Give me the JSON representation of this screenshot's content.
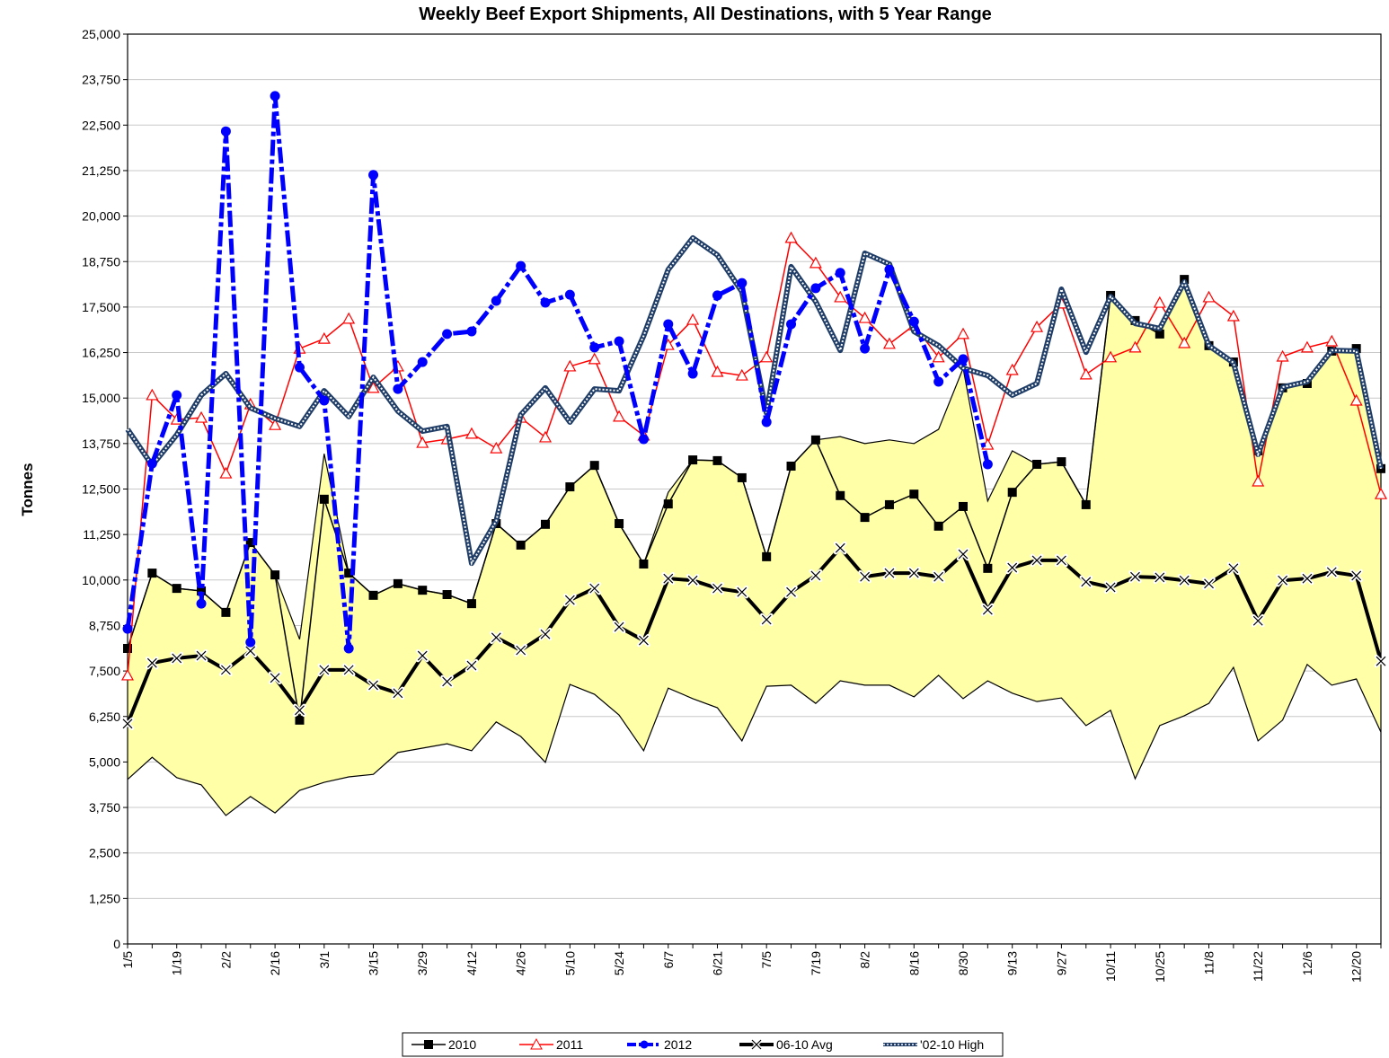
{
  "chart_data": {
    "type": "line",
    "title": "Weekly Beef Export Shipments, All Destinations, with 5 Year Range",
    "y_label": "Tonnes",
    "categories": [
      "1/5",
      null,
      "1/19",
      null,
      "2/2",
      null,
      "2/16",
      null,
      "3/1",
      null,
      "3/15",
      null,
      "3/29",
      null,
      "4/12",
      null,
      "4/26",
      null,
      "5/10",
      null,
      "5/24",
      null,
      "6/7",
      null,
      "6/21",
      null,
      "7/5",
      null,
      "7/19",
      null,
      "8/2",
      null,
      "8/16",
      null,
      "8/30",
      null,
      "9/13",
      null,
      "9/27",
      null,
      "10/11",
      null,
      "10/25",
      null,
      "11/8",
      null,
      "11/22",
      null,
      "12/6",
      null,
      "12/20",
      null
    ],
    "ylim": [
      0,
      25000
    ],
    "yticks": [
      0,
      {
        "value": 1250,
        "label": "1,250"
      },
      {
        "value": 2500,
        "label": "2,500"
      },
      {
        "value": 3750,
        "label": "3,750"
      },
      {
        "value": 5000,
        "label": "5,000"
      },
      {
        "value": 6250,
        "label": "6,250"
      },
      {
        "value": 7500,
        "label": "7,500"
      },
      {
        "value": 8750,
        "label": "8,750"
      },
      {
        "value": 10000,
        "label": "10,000"
      },
      {
        "value": 11250,
        "label": "11,250"
      },
      {
        "value": 12500,
        "label": "12,500"
      },
      {
        "value": 13750,
        "label": "13,750"
      },
      {
        "value": 15000,
        "label": "15,000"
      },
      {
        "value": 16250,
        "label": "16,250"
      },
      {
        "value": 17500,
        "label": "17,500"
      },
      {
        "value": 18750,
        "label": "18,750"
      },
      {
        "value": 20000,
        "label": "20,000"
      },
      {
        "value": 21250,
        "label": "21,250"
      },
      {
        "value": 22500,
        "label": "22,500"
      },
      {
        "value": 23750,
        "label": "23,750"
      },
      {
        "value": 25000,
        "label": "25,000"
      }
    ],
    "grid": true,
    "legend": "bottom",
    "range": {
      "color": "#ffffa8",
      "edge_color": "#000000",
      "high": [
        8120,
        10190,
        9770,
        9700,
        9110,
        11030,
        10140,
        8370,
        13470,
        10190,
        9580,
        9900,
        9720,
        9600,
        9350,
        11550,
        10960,
        11530,
        12560,
        13150,
        11550,
        10440,
        12410,
        13300,
        13280,
        12810,
        10640,
        13130,
        13850,
        13940,
        13750,
        13850,
        13750,
        14140,
        15820,
        12170,
        13550,
        13180,
        13250,
        12070,
        17820,
        17130,
        16760,
        18260,
        16440,
        15990,
        13550,
        15280,
        15400,
        16290,
        16360,
        13060
      ],
      "low": [
        4520,
        5130,
        4570,
        4370,
        3530,
        4050,
        3600,
        4220,
        4440,
        4590,
        4660,
        5260,
        5380,
        5500,
        5310,
        6100,
        5700,
        4990,
        7130,
        6860,
        6290,
        5310,
        7030,
        6740,
        6490,
        5580,
        7080,
        7110,
        6610,
        7230,
        7110,
        7110,
        6790,
        7380,
        6740,
        7230,
        6890,
        6660,
        6760,
        6000,
        6420,
        4540,
        6000,
        6270,
        6610,
        7600,
        5580,
        6150,
        7680,
        7110,
        7280,
        5820
      ]
    },
    "series": [
      {
        "name": "2010",
        "color": "#000000",
        "marker": "square",
        "width": 1.5,
        "values": [
          8120,
          10190,
          9770,
          9700,
          9110,
          11030,
          10140,
          6150,
          12220,
          10190,
          9580,
          9900,
          9720,
          9600,
          9350,
          11550,
          10960,
          11530,
          12560,
          13150,
          11550,
          10440,
          12090,
          13300,
          13280,
          12810,
          10640,
          13130,
          13850,
          12320,
          11720,
          12070,
          12360,
          11480,
          12020,
          10320,
          12410,
          13180,
          13250,
          12070,
          17820,
          17130,
          16760,
          18260,
          16440,
          15990,
          13550,
          15280,
          15400,
          16290,
          16360,
          13060
        ]
      },
      {
        "name": "2011",
        "color": "#ff0000",
        "marker": "triangle",
        "width": 1.5,
        "values": [
          7380,
          15080,
          14410,
          14460,
          12930,
          14830,
          14260,
          16360,
          16630,
          17180,
          15280,
          15870,
          13770,
          13870,
          14020,
          13620,
          14460,
          13920,
          15870,
          16070,
          14490,
          13970,
          16460,
          17150,
          15720,
          15620,
          16120,
          19400,
          18710,
          17770,
          17200,
          16490,
          17000,
          16120,
          16760,
          13720,
          15770,
          16950,
          17600,
          15650,
          16120,
          16390,
          17620,
          16510,
          17770,
          17250,
          12710,
          16140,
          16390,
          16560,
          14930,
          12360
        ]
      },
      {
        "name": "2012",
        "color": "#0000ff",
        "marker": "circle",
        "width": 5,
        "values": [
          8660,
          13200,
          15080,
          9350,
          22330,
          8290,
          23300,
          15840,
          14930,
          8120,
          21130,
          15250,
          15990,
          16760,
          16830,
          17670,
          18630,
          17620,
          17840,
          16390,
          16560,
          13870,
          17030,
          15670,
          17820,
          18160,
          14340,
          17030,
          18020,
          18440,
          16360,
          18530,
          17100,
          15450,
          16070,
          13180,
          null,
          null,
          null,
          null,
          null,
          null,
          null,
          null,
          null,
          null,
          null,
          null,
          null,
          null,
          null,
          null
        ]
      },
      {
        "name": "06-10 Avg",
        "color": "#000000",
        "marker": "x",
        "width": 4,
        "values": [
          6050,
          7720,
          7850,
          7920,
          7530,
          8050,
          7310,
          6420,
          7530,
          7530,
          7110,
          6890,
          7920,
          7210,
          7650,
          8420,
          8070,
          8510,
          9450,
          9770,
          8710,
          8340,
          10040,
          9990,
          9770,
          9670,
          8910,
          9670,
          10120,
          10880,
          10090,
          10190,
          10190,
          10090,
          10710,
          9180,
          10340,
          10540,
          10540,
          9950,
          9800,
          10090,
          10070,
          9990,
          9900,
          10320,
          8880,
          9990,
          10040,
          10220,
          10120,
          7770
        ]
      },
      {
        "name": "'02-10 High",
        "color": "#1f3d66",
        "marker": "pattern",
        "width": 6,
        "values": [
          14140,
          13150,
          13990,
          15080,
          15670,
          14730,
          14440,
          14220,
          15200,
          14490,
          15570,
          14640,
          14090,
          14220,
          10460,
          11620,
          14540,
          15280,
          14340,
          15250,
          15200,
          16710,
          18530,
          19400,
          18930,
          17920,
          14590,
          18610,
          17650,
          16310,
          18980,
          18680,
          16830,
          16440,
          15820,
          15620,
          15080,
          15400,
          17990,
          16260,
          17790,
          17050,
          16910,
          18190,
          16440,
          15970,
          13450,
          15300,
          15450,
          16310,
          16290,
          13060
        ]
      }
    ]
  }
}
